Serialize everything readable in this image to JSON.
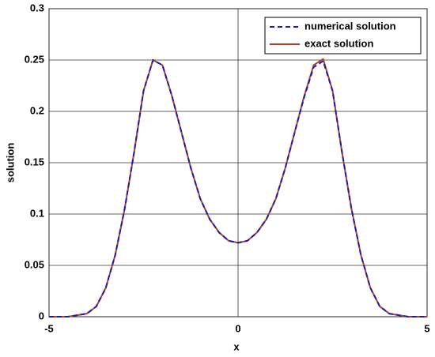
{
  "chart_data": {
    "type": "line",
    "xlabel": "x",
    "ylabel": "solution",
    "x": [
      -5,
      -4.5,
      -4,
      -3.75,
      -3.5,
      -3.25,
      -3,
      -2.75,
      -2.5,
      -2.25,
      -2,
      -1.75,
      -1.5,
      -1.25,
      -1,
      -0.75,
      -0.5,
      -0.25,
      0,
      0.25,
      0.5,
      0.75,
      1,
      1.25,
      1.5,
      1.75,
      2,
      2.25,
      2.5,
      2.75,
      3,
      3.25,
      3.5,
      3.75,
      4,
      4.5,
      5
    ],
    "series": [
      {
        "name": "numerical solution",
        "color": "#1a1ab4",
        "dashed": true,
        "values": [
          0,
          0,
          0.003,
          0.01,
          0.028,
          0.06,
          0.105,
          0.16,
          0.22,
          0.25,
          0.245,
          0.215,
          0.18,
          0.145,
          0.115,
          0.095,
          0.082,
          0.074,
          0.072,
          0.074,
          0.082,
          0.095,
          0.115,
          0.145,
          0.18,
          0.214,
          0.243,
          0.249,
          0.22,
          0.16,
          0.105,
          0.06,
          0.028,
          0.01,
          0.003,
          0,
          0
        ]
      },
      {
        "name": "exact solution",
        "color": "#b0401c",
        "dashed": false,
        "values": [
          0,
          0,
          0.003,
          0.01,
          0.028,
          0.06,
          0.105,
          0.16,
          0.22,
          0.25,
          0.245,
          0.215,
          0.18,
          0.145,
          0.115,
          0.095,
          0.082,
          0.074,
          0.072,
          0.074,
          0.082,
          0.095,
          0.115,
          0.145,
          0.18,
          0.215,
          0.245,
          0.251,
          0.22,
          0.16,
          0.105,
          0.06,
          0.028,
          0.01,
          0.003,
          0,
          0
        ]
      }
    ],
    "xlim": [
      -5,
      5
    ],
    "xticks": [
      -5,
      0,
      5
    ],
    "ylim": [
      0,
      0.3
    ],
    "yticks": [
      0,
      0.05,
      0.1,
      0.15,
      0.2,
      0.25,
      0.3
    ],
    "grid": true,
    "legend": "top-right"
  }
}
